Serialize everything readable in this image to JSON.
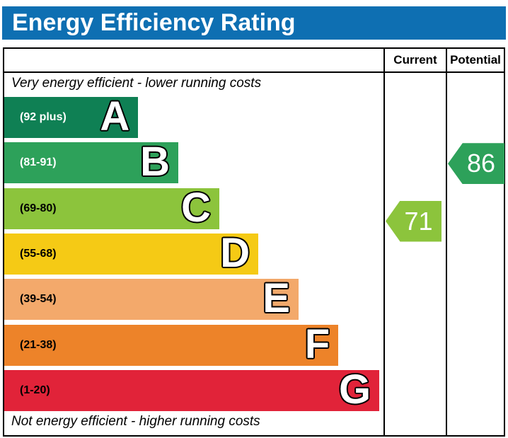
{
  "header": {
    "title": "Energy Efficiency Rating",
    "bg_color": "#0e6fb2",
    "text_color": "#ffffff"
  },
  "table": {
    "current_column_label": "Current",
    "potential_column_label": "Potential",
    "top_caption": "Very energy efficient - lower running costs",
    "bottom_caption": "Not energy efficient - higher running costs"
  },
  "chart_data": {
    "type": "bar",
    "title": "Energy Efficiency Rating",
    "orientation": "horizontal",
    "bands": [
      {
        "letter": "A",
        "range_label": "(92 plus)",
        "min": 92,
        "max": 100,
        "color": "#0f8054",
        "label_color": "#ffffff",
        "width_pct": 35.3
      },
      {
        "letter": "B",
        "range_label": "(81-91)",
        "min": 81,
        "max": 91,
        "color": "#2da15a",
        "label_color": "#ffffff",
        "width_pct": 45.9
      },
      {
        "letter": "C",
        "range_label": "(69-80)",
        "min": 69,
        "max": 80,
        "color": "#8cc43c",
        "label_color": "#000000",
        "width_pct": 56.7
      },
      {
        "letter": "D",
        "range_label": "(55-68)",
        "min": 55,
        "max": 68,
        "color": "#f5ca15",
        "label_color": "#000000",
        "width_pct": 67.0
      },
      {
        "letter": "E",
        "range_label": "(39-54)",
        "min": 39,
        "max": 54,
        "color": "#f3a96b",
        "label_color": "#000000",
        "width_pct": 77.6
      },
      {
        "letter": "F",
        "range_label": "(21-38)",
        "min": 21,
        "max": 38,
        "color": "#ed8329",
        "label_color": "#000000",
        "width_pct": 88.1
      },
      {
        "letter": "G",
        "range_label": "(1-20)",
        "min": 1,
        "max": 20,
        "color": "#e12339",
        "label_color": "#000000",
        "width_pct": 98.9
      }
    ],
    "markers": {
      "current": {
        "value": 71,
        "band": "C",
        "color": "#8cc43c"
      },
      "potential": {
        "value": 86,
        "band": "B",
        "color": "#2da15a"
      }
    }
  }
}
